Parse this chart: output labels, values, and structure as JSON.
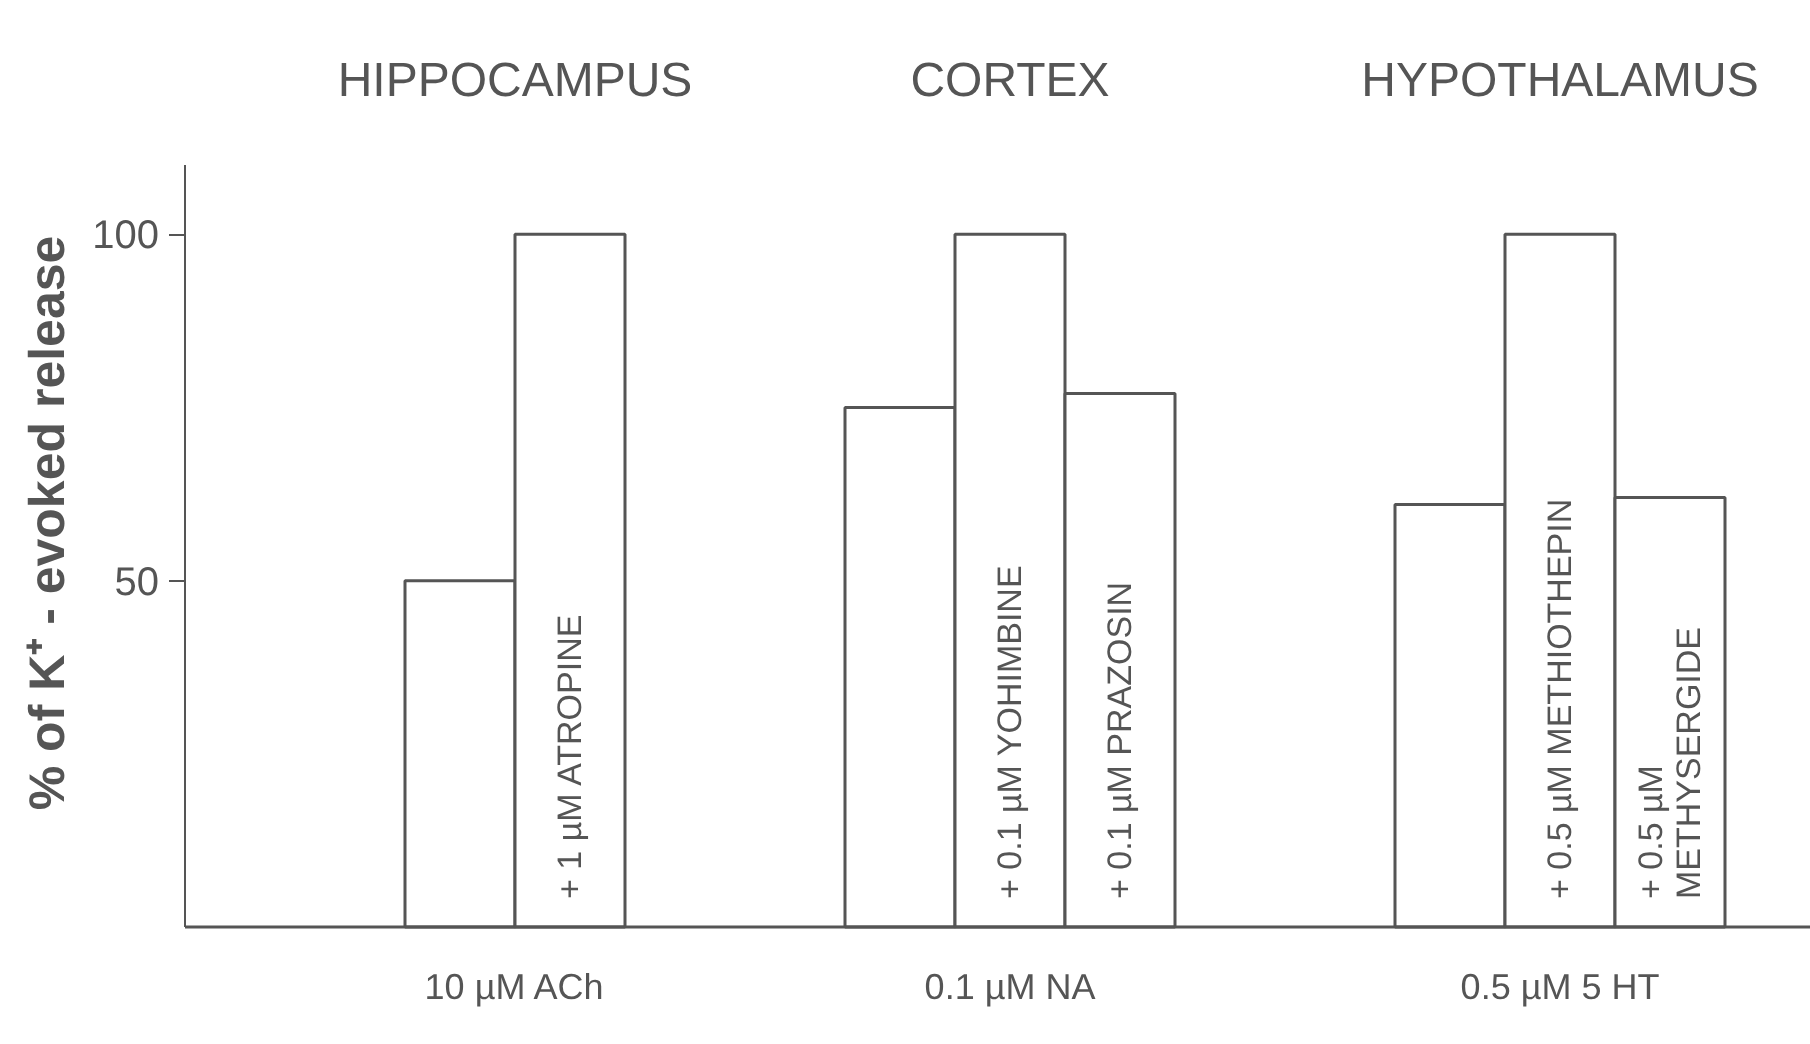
{
  "chart_data": {
    "type": "bar",
    "categories": [
      null,
      "+ 1 µM ATROPINE",
      null,
      "+ 0.1 µM YOHIMBINE",
      "+ 0.1 µM PRAZOSIN",
      null,
      "+ 0.5 µM METHIOTHEPIN",
      "+ 0.5 µM METHYSERGIDE"
    ],
    "values": [
      50,
      100,
      75,
      100,
      77,
      61,
      100,
      62
    ],
    "color": "#ffffff",
    "ylabel": "% of K⁺ - evoked release",
    "ylim": [
      0,
      110
    ],
    "yticks": [
      50,
      100
    ],
    "grid": false,
    "annotations": [
      "HIPPOCAMPUS",
      "CORTEX",
      "HYPOTHALAMUS",
      "10 µM ACh",
      "0.1 µM NA",
      "0.5 µM 5 HT"
    ]
  }
}
